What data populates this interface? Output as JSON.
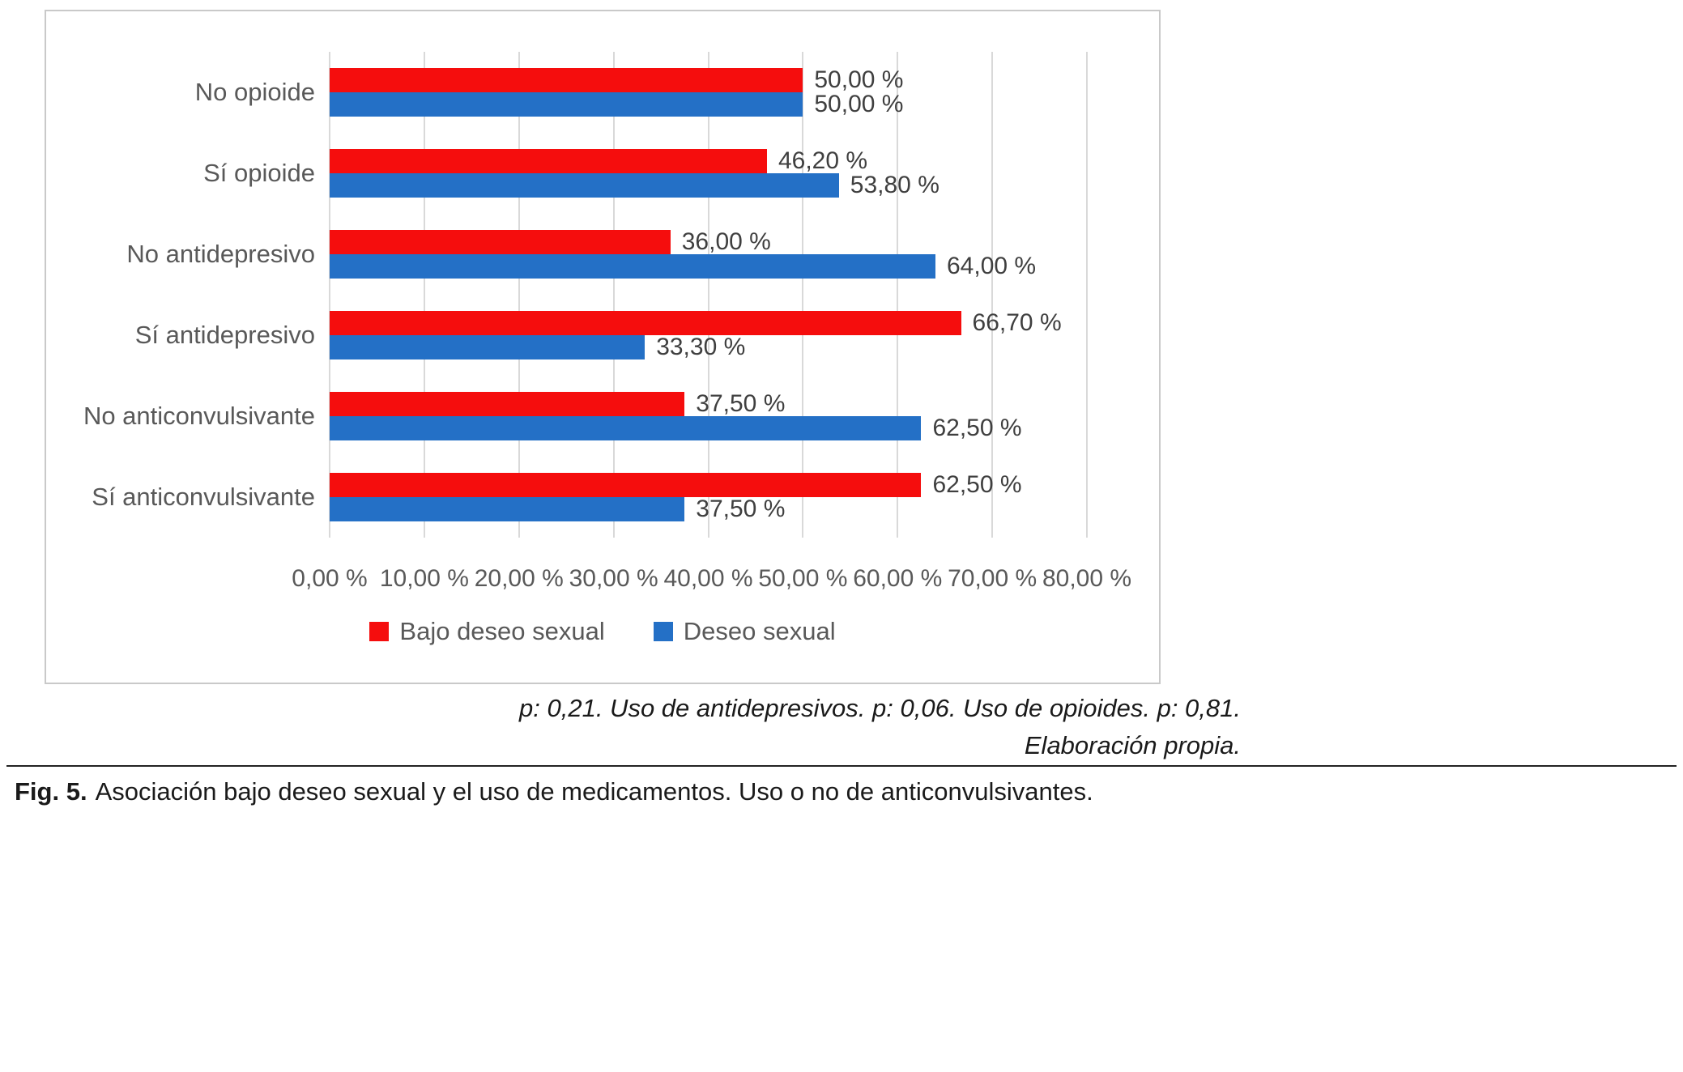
{
  "chart_data": {
    "type": "bar",
    "orientation": "horizontal",
    "title": "",
    "categories": [
      "No opioide",
      "Sí opioide",
      "No antidepresivo",
      "Sí antidepresivo",
      "No anticonvulsivante",
      "Sí anticonvulsivante"
    ],
    "series": [
      {
        "name": "Bajo deseo sexual",
        "color": "#f50d0d",
        "values": [
          50.0,
          46.2,
          36.0,
          66.7,
          37.5,
          62.5
        ],
        "labels": [
          "50,00 %",
          "46,20 %",
          "36,00 %",
          "66,70 %",
          "37,50 %",
          "62,50 %"
        ]
      },
      {
        "name": "Deseo sexual",
        "color": "#2470c6",
        "values": [
          50.0,
          53.8,
          64.0,
          33.3,
          62.5,
          37.5
        ],
        "labels": [
          "50,00 %",
          "53,80 %",
          "64,00 %",
          "33,30 %",
          "62,50 %",
          "37,50 %"
        ]
      }
    ],
    "xlim": [
      0,
      80
    ],
    "xticks": [
      {
        "value": 0,
        "label": "0,00 %"
      },
      {
        "value": 10,
        "label": "10,00 %"
      },
      {
        "value": 20,
        "label": "20,00 %"
      },
      {
        "value": 30,
        "label": "30,00 %"
      },
      {
        "value": 40,
        "label": "40,00 %"
      },
      {
        "value": 50,
        "label": "50,00 %"
      },
      {
        "value": 60,
        "label": "60,00 %"
      },
      {
        "value": 70,
        "label": "70,00 %"
      },
      {
        "value": 80,
        "label": "80,00 %"
      }
    ],
    "grid": true,
    "legend_position": "bottom"
  },
  "notes": {
    "line1": "p: 0,21. Uso de antidepresivos. p: 0,06. Uso de opioides. p: 0,81.",
    "line2": "Elaboración propia."
  },
  "caption": {
    "prefix": "Fig. 5.",
    "text": "Asociación bajo deseo sexual y el uso de medicamentos. Uso o no de anticonvulsivantes."
  }
}
